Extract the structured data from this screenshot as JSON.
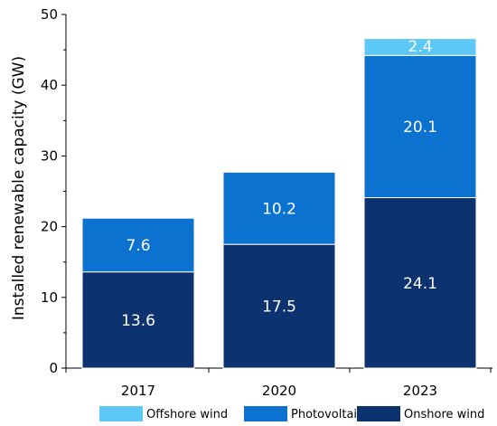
{
  "chart_data": {
    "type": "bar",
    "stacked": true,
    "categories": [
      "2017",
      "2020",
      "2023"
    ],
    "series": [
      {
        "name": "Onshore wind",
        "color": "#0d3270",
        "values": [
          13.6,
          17.5,
          24.1
        ]
      },
      {
        "name": "Photovoltaic",
        "color": "#0b72d0",
        "values": [
          7.6,
          10.2,
          20.1
        ]
      },
      {
        "name": "Offshore wind",
        "color": "#5cc8f5",
        "values": [
          null,
          null,
          2.4
        ]
      }
    ],
    "legend_order": [
      "Offshore wind",
      "Photovoltaic",
      "Onshore wind"
    ],
    "title": "",
    "xlabel": "",
    "ylabel": "Installed renewable capacity (GW)",
    "ylim": [
      0,
      50
    ],
    "yticks": [
      0,
      10,
      20,
      30,
      40,
      50
    ],
    "grid": false,
    "legend_position": "bottom"
  }
}
